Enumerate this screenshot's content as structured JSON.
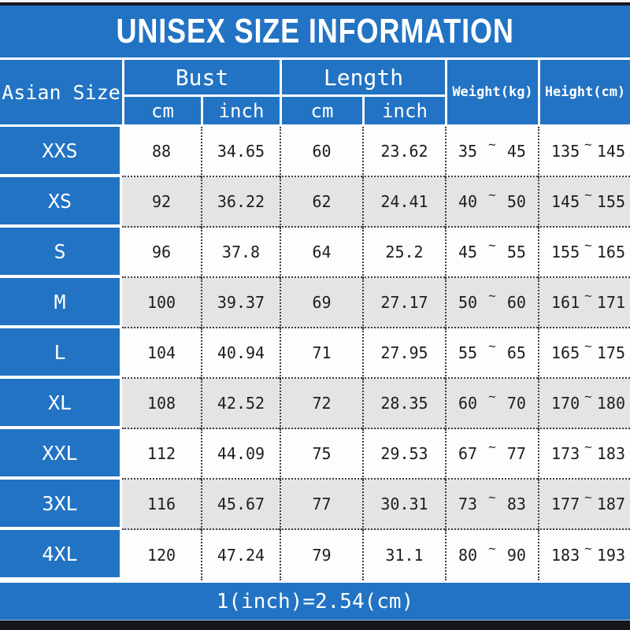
{
  "title": "UNISEX SIZE INFORMATION",
  "tilde": "~",
  "header": {
    "asian_size": "Asian Size",
    "bust": "Bust",
    "length": "Length",
    "cm": "cm",
    "inch": "inch",
    "weight": "Weight(kg)",
    "height": "Height(cm)"
  },
  "rows": [
    {
      "size": "XXS",
      "bust_cm": "88",
      "bust_inch": "34.65",
      "length_cm": "60",
      "length_inch": "23.62",
      "weight_min": "35",
      "weight_max": "45",
      "height_min": "135",
      "height_max": "145"
    },
    {
      "size": "XS",
      "bust_cm": "92",
      "bust_inch": "36.22",
      "length_cm": "62",
      "length_inch": "24.41",
      "weight_min": "40",
      "weight_max": "50",
      "height_min": "145",
      "height_max": "155"
    },
    {
      "size": "S",
      "bust_cm": "96",
      "bust_inch": "37.8",
      "length_cm": "64",
      "length_inch": "25.2",
      "weight_min": "45",
      "weight_max": "55",
      "height_min": "155",
      "height_max": "165"
    },
    {
      "size": "M",
      "bust_cm": "100",
      "bust_inch": "39.37",
      "length_cm": "69",
      "length_inch": "27.17",
      "weight_min": "50",
      "weight_max": "60",
      "height_min": "161",
      "height_max": "171"
    },
    {
      "size": "L",
      "bust_cm": "104",
      "bust_inch": "40.94",
      "length_cm": "71",
      "length_inch": "27.95",
      "weight_min": "55",
      "weight_max": "65",
      "height_min": "165",
      "height_max": "175"
    },
    {
      "size": "XL",
      "bust_cm": "108",
      "bust_inch": "42.52",
      "length_cm": "72",
      "length_inch": "28.35",
      "weight_min": "60",
      "weight_max": "70",
      "height_min": "170",
      "height_max": "180"
    },
    {
      "size": "XXL",
      "bust_cm": "112",
      "bust_inch": "44.09",
      "length_cm": "75",
      "length_inch": "29.53",
      "weight_min": "67",
      "weight_max": "77",
      "height_min": "173",
      "height_max": "183"
    },
    {
      "size": "3XL",
      "bust_cm": "116",
      "bust_inch": "45.67",
      "length_cm": "77",
      "length_inch": "30.31",
      "weight_min": "73",
      "weight_max": "83",
      "height_min": "177",
      "height_max": "187"
    },
    {
      "size": "4XL",
      "bust_cm": "120",
      "bust_inch": "47.24",
      "length_cm": "79",
      "length_inch": "31.1",
      "weight_min": "80",
      "weight_max": "90",
      "height_min": "183",
      "height_max": "193"
    }
  ],
  "footer": "1(inch)=2.54(cm)",
  "colors": {
    "accent_blue": "#2273c3",
    "row_alt_gray": "#e4e4e4",
    "bar_black": "#16161c"
  },
  "chart_data": {
    "type": "table",
    "title": "UNISEX SIZE INFORMATION",
    "columns": [
      "Asian Size",
      "Bust cm",
      "Bust inch",
      "Length cm",
      "Length inch",
      "Weight(kg)",
      "Height(cm)"
    ],
    "rows": [
      [
        "XXS",
        88,
        34.65,
        60,
        23.62,
        "35~45",
        "135~145"
      ],
      [
        "XS",
        92,
        36.22,
        62,
        24.41,
        "40~50",
        "145~155"
      ],
      [
        "S",
        96,
        37.8,
        64,
        25.2,
        "45~55",
        "155~165"
      ],
      [
        "M",
        100,
        39.37,
        69,
        27.17,
        "50~60",
        "161~171"
      ],
      [
        "L",
        104,
        40.94,
        71,
        27.95,
        "55~65",
        "165~175"
      ],
      [
        "XL",
        108,
        42.52,
        72,
        28.35,
        "60~70",
        "170~180"
      ],
      [
        "XXL",
        112,
        44.09,
        75,
        29.53,
        "67~77",
        "173~183"
      ],
      [
        "3XL",
        116,
        45.67,
        77,
        30.31,
        "73~83",
        "177~187"
      ],
      [
        "4XL",
        120,
        47.24,
        79,
        31.1,
        "80~90",
        "183~193"
      ]
    ],
    "footnote": "1(inch)=2.54(cm)"
  }
}
